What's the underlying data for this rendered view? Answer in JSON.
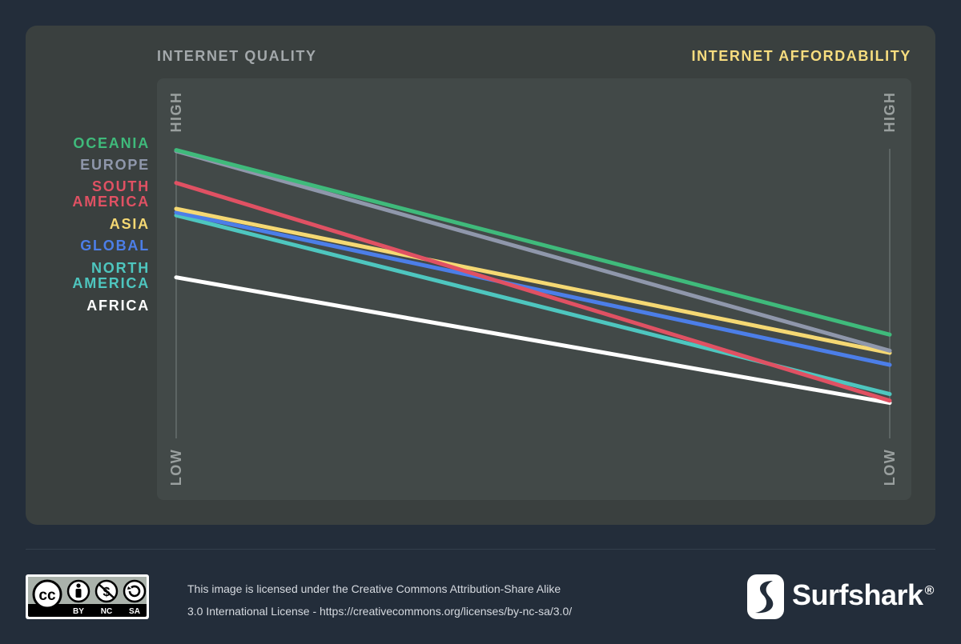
{
  "chart_data": {
    "type": "line",
    "x": [
      "INTERNET QUALITY",
      "INTERNET AFFORDABILITY"
    ],
    "y_scale": {
      "top_label": "HIGH",
      "bottom_label": "LOW"
    },
    "series": [
      {
        "name": "OCEANIA",
        "color": "#3fba7b",
        "values": [
          0.865,
          0.359
        ]
      },
      {
        "name": "EUROPE",
        "color": "#8f97ab",
        "values": [
          0.862,
          0.315
        ]
      },
      {
        "name": "SOUTH AMERICA",
        "color": "#e05163",
        "values": [
          0.775,
          0.178
        ]
      },
      {
        "name": "ASIA",
        "color": "#f5d873",
        "values": [
          0.704,
          0.309
        ]
      },
      {
        "name": "GLOBAL",
        "color": "#4c7ee8",
        "values": [
          0.694,
          0.276
        ]
      },
      {
        "name": "NORTH AMERICA",
        "color": "#4ec6bf",
        "values": [
          0.686,
          0.196
        ]
      },
      {
        "name": "AFRICA",
        "color": "#ffffff",
        "values": [
          0.516,
          0.172
        ]
      }
    ]
  },
  "titles": {
    "left": "INTERNET QUALITY",
    "right": "INTERNET AFFORDABILITY"
  },
  "axis_labels": {
    "left_high": "HIGH",
    "left_low": "LOW",
    "right_high": "HIGH",
    "right_low": "LOW"
  },
  "legend": [
    {
      "lines": [
        "OCEANIA"
      ],
      "color": "#3fba7b"
    },
    {
      "lines": [
        "EUROPE"
      ],
      "color": "#8f97ab"
    },
    {
      "lines": [
        "SOUTH",
        "AMERICA"
      ],
      "color": "#e05163"
    },
    {
      "lines": [
        "ASIA"
      ],
      "color": "#f5d873"
    },
    {
      "lines": [
        "GLOBAL"
      ],
      "color": "#4c7ee8"
    },
    {
      "lines": [
        "NORTH",
        "AMERICA"
      ],
      "color": "#4ec6bf"
    },
    {
      "lines": [
        "AFRICA"
      ],
      "color": "#ffffff"
    }
  ],
  "footer": {
    "license_line1": "This image is licensed under the Creative Commons Attribution-Share Alike",
    "license_line2": "3.0 International License - https://creativecommons.org/licenses/by-nc-sa/3.0/",
    "cc_labels": [
      "BY",
      "NC",
      "SA"
    ],
    "cc_mark": "cc",
    "brand": "Surfshark",
    "brand_mark": "®"
  }
}
